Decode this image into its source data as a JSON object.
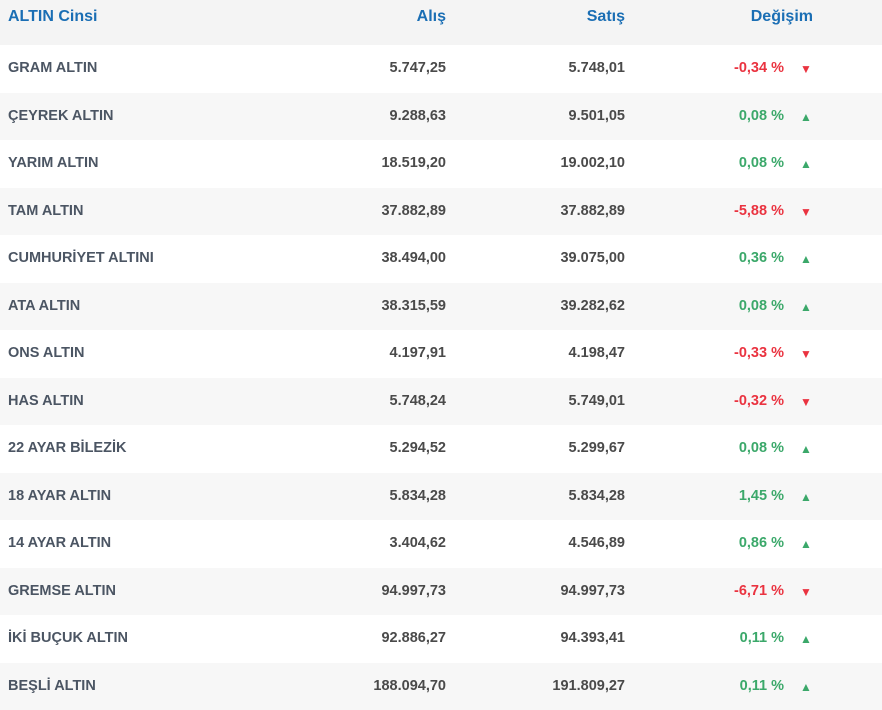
{
  "header": {
    "name": "ALTIN Cinsi",
    "buy": "Alış",
    "sell": "Satış",
    "change": "Değişim"
  },
  "colors": {
    "header_text": "#1a6eb4",
    "up": "#3ba86a",
    "down": "#ea3340"
  },
  "rows": [
    {
      "name": "GRAM ALTIN",
      "buy": "5.747,25",
      "sell": "5.748,01",
      "change": "-0,34 %",
      "dir": "down"
    },
    {
      "name": "ÇEYREK ALTIN",
      "buy": "9.288,63",
      "sell": "9.501,05",
      "change": "0,08 %",
      "dir": "up"
    },
    {
      "name": "YARIM ALTIN",
      "buy": "18.519,20",
      "sell": "19.002,10",
      "change": "0,08 %",
      "dir": "up"
    },
    {
      "name": "TAM ALTIN",
      "buy": "37.882,89",
      "sell": "37.882,89",
      "change": "-5,88 %",
      "dir": "down"
    },
    {
      "name": "CUMHURİYET ALTINI",
      "buy": "38.494,00",
      "sell": "39.075,00",
      "change": "0,36 %",
      "dir": "up"
    },
    {
      "name": "ATA ALTIN",
      "buy": "38.315,59",
      "sell": "39.282,62",
      "change": "0,08 %",
      "dir": "up"
    },
    {
      "name": "ONS ALTIN",
      "buy": "4.197,91",
      "sell": "4.198,47",
      "change": "-0,33 %",
      "dir": "down"
    },
    {
      "name": "HAS ALTIN",
      "buy": "5.748,24",
      "sell": "5.749,01",
      "change": "-0,32 %",
      "dir": "down"
    },
    {
      "name": "22 AYAR BİLEZİK",
      "buy": "5.294,52",
      "sell": "5.299,67",
      "change": "0,08 %",
      "dir": "up"
    },
    {
      "name": "18 AYAR ALTIN",
      "buy": "5.834,28",
      "sell": "5.834,28",
      "change": "1,45 %",
      "dir": "up"
    },
    {
      "name": "14 AYAR ALTIN",
      "buy": "3.404,62",
      "sell": "4.546,89",
      "change": "0,86 %",
      "dir": "up"
    },
    {
      "name": "GREMSE ALTIN",
      "buy": "94.997,73",
      "sell": "94.997,73",
      "change": "-6,71 %",
      "dir": "down"
    },
    {
      "name": "İKİ BUÇUK ALTIN",
      "buy": "92.886,27",
      "sell": "94.393,41",
      "change": "0,11 %",
      "dir": "up"
    },
    {
      "name": "BEŞLİ ALTIN",
      "buy": "188.094,70",
      "sell": "191.809,27",
      "change": "0,11 %",
      "dir": "up"
    }
  ]
}
